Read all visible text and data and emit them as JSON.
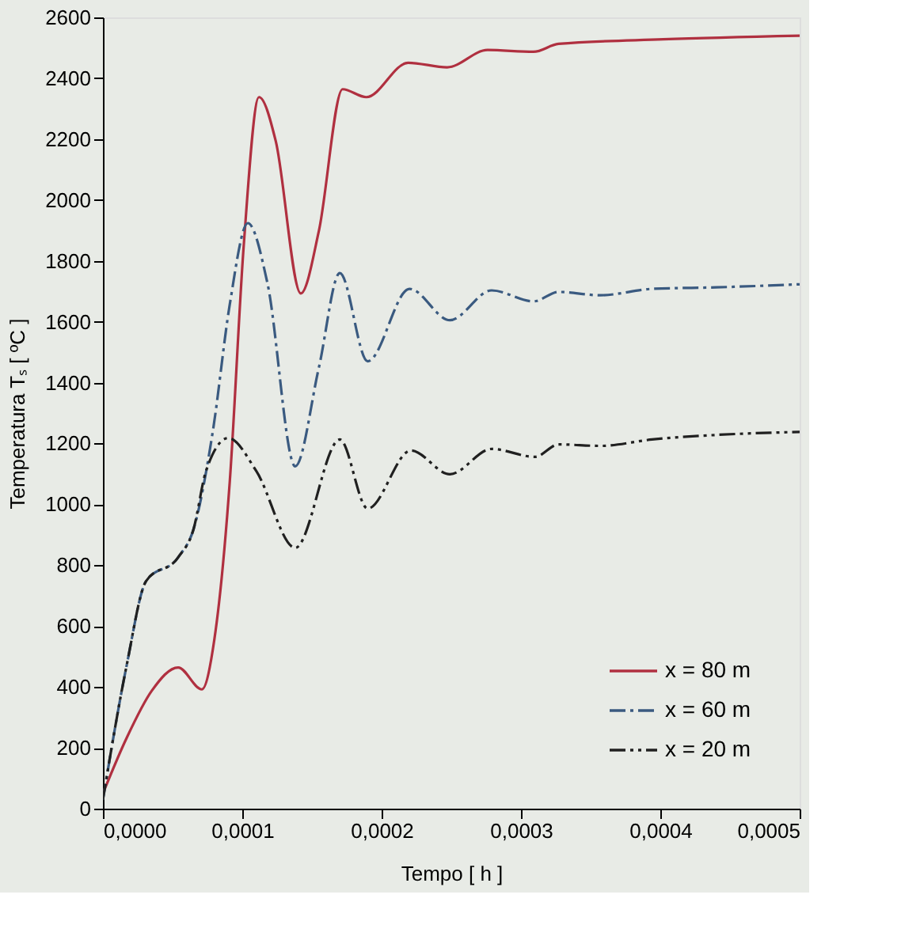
{
  "chart_data": {
    "type": "line",
    "xlabel": "Tempo [ h ]",
    "ylabel": "Temperatura Tₛ [ ºC ]",
    "xlim": [
      0,
      0.0005
    ],
    "ylim": [
      0,
      2600
    ],
    "xticks": [
      {
        "value": 0,
        "label": "0,0000"
      },
      {
        "value": 0.0001,
        "label": "0,0001"
      },
      {
        "value": 0.0002,
        "label": "0,0002"
      },
      {
        "value": 0.0003,
        "label": "0,0003"
      },
      {
        "value": 0.0004,
        "label": "0,0004"
      },
      {
        "value": 0.0005,
        "label": "0,0005"
      }
    ],
    "yticks": [
      0,
      200,
      400,
      600,
      800,
      1000,
      1200,
      1400,
      1600,
      1800,
      2000,
      2200,
      2400,
      2600
    ],
    "grid": false,
    "legend": "bottom right",
    "marker": "none",
    "series": [
      {
        "name": "x = 80 m",
        "color": "#b03040",
        "line_style": "solid",
        "x": [
          0,
          1.7e-05,
          3.5e-05,
          5.4e-05,
          7.1e-05,
          8e-05,
          9.1e-05,
          0.000101,
          0.000112,
          0.000124,
          0.000142,
          0.000155,
          0.000172,
          0.000189,
          0.000219,
          0.000247,
          0.000276,
          0.000309,
          0.000327,
          0.000402,
          0.0005
        ],
        "values": [
          50,
          232,
          387,
          464,
          392,
          557,
          1073,
          1847,
          2338,
          2194,
          1693,
          1899,
          2364,
          2338,
          2451,
          2436,
          2493,
          2487,
          2513,
          2528,
          2540
        ]
      },
      {
        "name": "x = 60 m",
        "color": "#3a5a80",
        "line_style": "dashdot",
        "x": [
          0,
          1.7e-05,
          3.1e-05,
          5.4e-05,
          6.5e-05,
          7.9e-05,
          9.1e-05,
          0.000104,
          0.000118,
          0.000138,
          0.000155,
          0.00017,
          0.00019,
          0.00022,
          0.000249,
          0.000279,
          0.000309,
          0.000327,
          0.000357,
          0.000394,
          0.00044,
          0.0005
        ],
        "values": [
          30,
          470,
          748,
          826,
          918,
          1244,
          1656,
          1924,
          1728,
          1125,
          1450,
          1760,
          1470,
          1708,
          1605,
          1703,
          1667,
          1698,
          1687,
          1708,
          1713,
          1723
        ]
      },
      {
        "name": "x = 20 m",
        "color": "#202020",
        "line_style": "dashdotdot",
        "x": [
          0,
          1.7e-05,
          3.1e-05,
          5.4e-05,
          6.5e-05,
          7.4e-05,
          9e-05,
          0.00011,
          0.000138,
          0.00017,
          0.00019,
          0.000221,
          0.000249,
          0.000279,
          0.00031,
          0.000327,
          0.000357,
          0.000394,
          0.00044,
          0.0005
        ],
        "values": [
          30,
          470,
          748,
          826,
          918,
          1110,
          1218,
          1110,
          857,
          1213,
          986,
          1177,
          1099,
          1182,
          1156,
          1197,
          1192,
          1213,
          1228,
          1238
        ]
      }
    ]
  }
}
